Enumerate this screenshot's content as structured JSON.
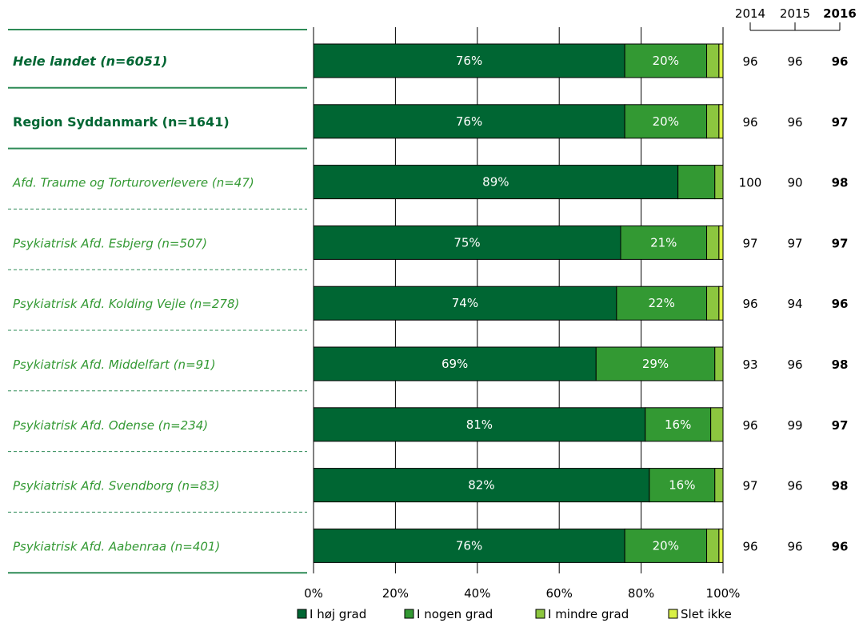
{
  "chart_data": {
    "type": "bar",
    "orientation": "horizontal",
    "stacked": true,
    "xlim": [
      0,
      100
    ],
    "x_ticks": [
      "0%",
      "20%",
      "40%",
      "60%",
      "80%",
      "100%"
    ],
    "grid": true,
    "legend_position": "bottom",
    "year_headers": [
      "2014",
      "2015",
      "2016"
    ],
    "categories": [
      {
        "label": "Hele landet (n=6051)",
        "style": "total",
        "values": [
          76,
          20,
          3,
          1
        ],
        "labels": [
          "76%",
          "20%",
          "",
          ""
        ],
        "years": [
          "96",
          "96",
          "96"
        ]
      },
      {
        "label": "Region Syddanmark (n=1641)",
        "style": "region",
        "values": [
          76,
          20,
          3,
          1
        ],
        "labels": [
          "76%",
          "20%",
          "",
          ""
        ],
        "years": [
          "96",
          "96",
          "97"
        ]
      },
      {
        "label": "Afd. Traume og Torturoverlevere (n=47)",
        "style": "unit",
        "values": [
          89,
          9,
          2,
          0
        ],
        "labels": [
          "89%",
          "",
          "",
          ""
        ],
        "years": [
          "100",
          "90",
          "98"
        ]
      },
      {
        "label": "Psykiatrisk Afd. Esbjerg (n=507)",
        "style": "unit",
        "values": [
          75,
          21,
          3,
          1
        ],
        "labels": [
          "75%",
          "21%",
          "",
          ""
        ],
        "years": [
          "97",
          "97",
          "97"
        ]
      },
      {
        "label": "Psykiatrisk Afd. Kolding Vejle (n=278)",
        "style": "unit",
        "values": [
          74,
          22,
          3,
          1
        ],
        "labels": [
          "74%",
          "22%",
          "",
          ""
        ],
        "years": [
          "96",
          "94",
          "96"
        ]
      },
      {
        "label": "Psykiatrisk Afd. Middelfart (n=91)",
        "style": "unit",
        "values": [
          69,
          29,
          2,
          0
        ],
        "labels": [
          "69%",
          "29%",
          "",
          ""
        ],
        "years": [
          "93",
          "96",
          "98"
        ]
      },
      {
        "label": "Psykiatrisk Afd. Odense (n=234)",
        "style": "unit",
        "values": [
          81,
          16,
          3,
          0
        ],
        "labels": [
          "81%",
          "16%",
          "",
          ""
        ],
        "years": [
          "96",
          "99",
          "97"
        ]
      },
      {
        "label": "Psykiatrisk Afd. Svendborg (n=83)",
        "style": "unit",
        "values": [
          82,
          16,
          2,
          0
        ],
        "labels": [
          "82%",
          "16%",
          "",
          ""
        ],
        "years": [
          "97",
          "96",
          "98"
        ]
      },
      {
        "label": "Psykiatrisk Afd. Aabenraa (n=401)",
        "style": "unit",
        "values": [
          76,
          20,
          3,
          1
        ],
        "labels": [
          "76%",
          "20%",
          "",
          ""
        ],
        "years": [
          "96",
          "96",
          "96"
        ]
      }
    ],
    "series": [
      {
        "name": "I høj grad",
        "color": "#006633"
      },
      {
        "name": "I nogen grad",
        "color": "#339933"
      },
      {
        "name": "I mindre grad",
        "color": "#8cc63f"
      },
      {
        "name": "Slet ikke",
        "color": "#d9f045"
      }
    ],
    "colors": {
      "label_text": "#339933",
      "heading_text": "#006633",
      "separator": "#2e8b57",
      "grid": "#000000"
    }
  }
}
